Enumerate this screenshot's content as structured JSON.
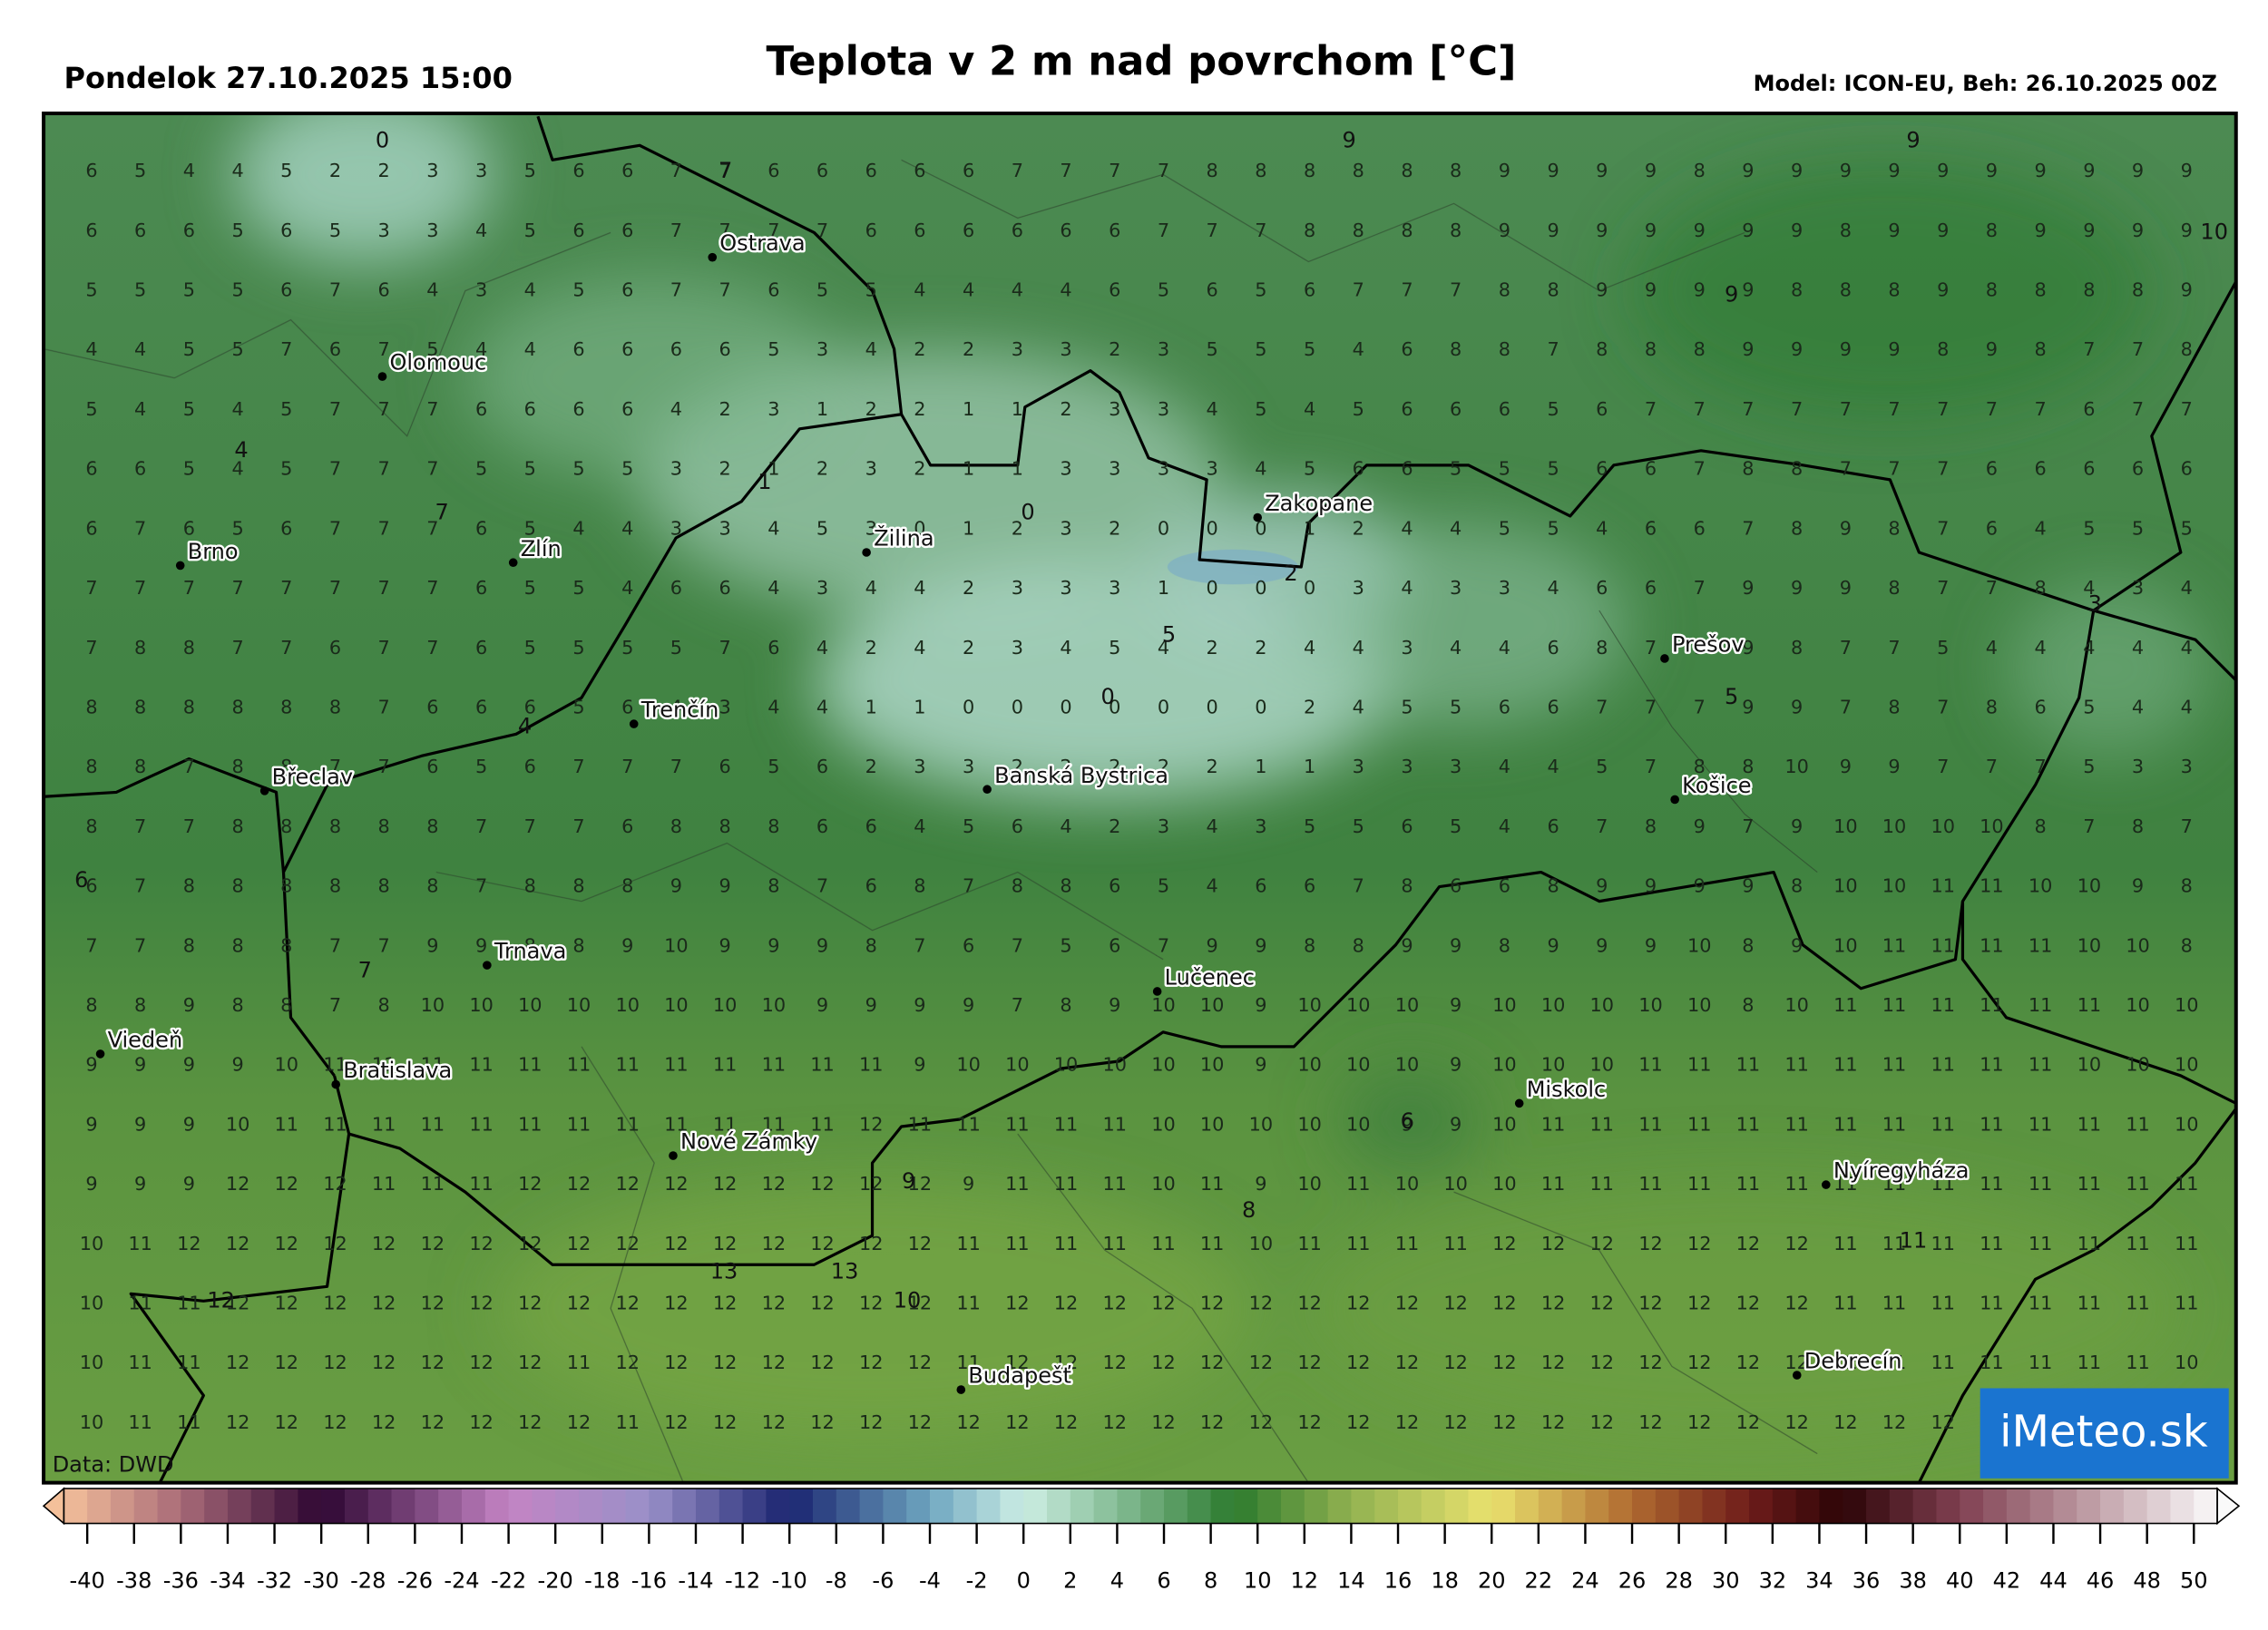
{
  "header": {
    "date": "Pondelok 27.10.2025 15:00",
    "title": "Teplota v 2 m nad povrchom [°C]",
    "model": "Model: ICON-EU, Beh: 26.10.2025 00Z"
  },
  "grid": {
    "rows": [
      [
        6,
        5,
        4,
        4,
        5,
        2,
        2,
        3,
        3,
        5,
        6,
        6,
        7,
        7,
        6,
        6,
        6,
        6,
        6,
        7,
        7,
        7,
        7,
        8,
        8,
        8,
        8,
        8,
        8,
        9,
        9,
        9,
        9,
        8,
        9,
        9,
        9,
        9,
        9,
        9,
        9,
        9,
        9,
        9
      ],
      [
        6,
        6,
        6,
        5,
        6,
        5,
        3,
        3,
        4,
        5,
        6,
        6,
        7,
        7,
        7,
        7,
        6,
        6,
        6,
        6,
        6,
        6,
        7,
        7,
        7,
        8,
        8,
        8,
        8,
        9,
        9,
        9,
        9,
        9,
        9,
        9,
        8,
        9,
        9,
        8,
        9,
        9,
        9,
        9
      ],
      [
        5,
        5,
        5,
        5,
        6,
        7,
        6,
        4,
        3,
        4,
        5,
        6,
        7,
        7,
        6,
        5,
        5,
        4,
        4,
        4,
        4,
        6,
        5,
        6,
        5,
        6,
        7,
        7,
        7,
        8,
        8,
        9,
        9,
        9,
        9,
        8,
        8,
        8,
        9,
        8,
        8,
        8,
        8,
        9
      ],
      [
        4,
        4,
        5,
        5,
        7,
        6,
        7,
        5,
        4,
        4,
        6,
        6,
        6,
        6,
        5,
        3,
        4,
        2,
        2,
        3,
        3,
        2,
        3,
        5,
        5,
        5,
        4,
        6,
        8,
        8,
        7,
        8,
        8,
        8,
        9,
        9,
        9,
        9,
        8,
        9,
        8,
        7,
        7,
        8
      ],
      [
        5,
        4,
        5,
        4,
        5,
        7,
        7,
        7,
        6,
        6,
        6,
        6,
        4,
        2,
        3,
        1,
        2,
        2,
        1,
        1,
        2,
        3,
        3,
        4,
        5,
        4,
        5,
        6,
        6,
        6,
        5,
        6,
        7,
        7,
        7,
        7,
        7,
        7,
        7,
        7,
        7,
        6,
        7,
        7
      ],
      [
        6,
        6,
        5,
        4,
        5,
        7,
        7,
        7,
        5,
        5,
        5,
        5,
        3,
        2,
        1,
        2,
        3,
        2,
        1,
        1,
        3,
        3,
        3,
        3,
        4,
        5,
        6,
        6,
        5,
        5,
        5,
        6,
        6,
        7,
        8,
        8,
        7,
        7,
        7,
        6,
        6,
        6,
        6,
        6
      ],
      [
        6,
        7,
        6,
        5,
        6,
        7,
        7,
        7,
        6,
        5,
        4,
        4,
        3,
        3,
        4,
        5,
        3,
        0,
        1,
        2,
        3,
        2,
        0,
        0,
        0,
        1,
        2,
        4,
        4,
        5,
        5,
        4,
        6,
        6,
        7,
        8,
        9,
        8,
        7,
        6,
        4,
        5,
        5,
        5
      ],
      [
        7,
        7,
        7,
        7,
        7,
        7,
        7,
        7,
        6,
        5,
        5,
        4,
        6,
        6,
        4,
        3,
        4,
        4,
        2,
        3,
        3,
        3,
        1,
        0,
        0,
        0,
        3,
        4,
        3,
        3,
        4,
        6,
        6,
        7,
        9,
        9,
        9,
        8,
        7,
        7,
        8,
        4,
        3,
        4
      ],
      [
        7,
        8,
        8,
        7,
        7,
        6,
        7,
        7,
        6,
        5,
        5,
        5,
        5,
        7,
        6,
        4,
        2,
        4,
        2,
        3,
        4,
        5,
        4,
        2,
        2,
        4,
        4,
        3,
        4,
        4,
        6,
        8,
        7,
        9,
        9,
        8,
        7,
        7,
        5,
        4,
        4,
        4,
        4,
        4
      ],
      [
        8,
        8,
        8,
        8,
        8,
        8,
        7,
        6,
        6,
        6,
        5,
        6,
        4,
        3,
        4,
        4,
        1,
        1,
        0,
        0,
        0,
        0,
        0,
        0,
        0,
        2,
        4,
        5,
        5,
        6,
        6,
        7,
        7,
        7,
        9,
        9,
        7,
        8,
        7,
        8,
        6,
        5,
        4,
        4
      ],
      [
        8,
        8,
        7,
        8,
        8,
        7,
        7,
        6,
        5,
        6,
        7,
        7,
        7,
        6,
        5,
        6,
        2,
        3,
        3,
        2,
        2,
        2,
        2,
        2,
        1,
        1,
        3,
        3,
        3,
        4,
        4,
        5,
        7,
        8,
        8,
        10,
        9,
        9,
        7,
        7,
        7,
        5,
        3,
        3
      ],
      [
        8,
        7,
        7,
        8,
        8,
        8,
        8,
        8,
        7,
        7,
        7,
        6,
        8,
        8,
        8,
        6,
        6,
        4,
        5,
        6,
        4,
        2,
        3,
        4,
        3,
        5,
        5,
        6,
        5,
        4,
        6,
        7,
        8,
        9,
        7,
        9,
        10,
        10,
        10,
        10,
        8,
        7,
        8,
        7
      ],
      [
        6,
        7,
        8,
        8,
        8,
        8,
        8,
        8,
        7,
        8,
        8,
        8,
        9,
        9,
        8,
        7,
        6,
        8,
        7,
        8,
        8,
        6,
        5,
        4,
        6,
        6,
        7,
        8,
        6,
        6,
        8,
        9,
        9,
        9,
        9,
        8,
        10,
        10,
        11,
        11,
        10,
        10,
        9,
        8
      ],
      [
        7,
        7,
        8,
        8,
        8,
        7,
        7,
        9,
        9,
        8,
        8,
        9,
        10,
        9,
        9,
        9,
        8,
        7,
        6,
        7,
        5,
        6,
        7,
        9,
        9,
        8,
        8,
        9,
        9,
        8,
        9,
        9,
        9,
        10,
        8,
        9,
        10,
        11,
        11,
        11,
        11,
        10,
        10,
        8
      ],
      [
        8,
        8,
        9,
        8,
        8,
        7,
        8,
        10,
        10,
        10,
        10,
        10,
        10,
        10,
        10,
        9,
        9,
        9,
        9,
        7,
        8,
        9,
        10,
        10,
        9,
        10,
        10,
        10,
        9,
        10,
        10,
        10,
        10,
        10,
        8,
        10,
        11,
        11,
        11,
        11,
        11,
        11,
        10,
        10
      ],
      [
        9,
        9,
        9,
        9,
        10,
        11,
        11,
        11,
        11,
        11,
        11,
        11,
        11,
        11,
        11,
        11,
        11,
        9,
        10,
        10,
        10,
        10,
        10,
        10,
        9,
        10,
        10,
        10,
        9,
        10,
        10,
        10,
        11,
        11,
        11,
        11,
        11,
        11,
        11,
        11,
        11,
        10,
        10,
        10
      ],
      [
        9,
        9,
        9,
        10,
        11,
        11,
        11,
        11,
        11,
        11,
        11,
        11,
        11,
        11,
        11,
        11,
        12,
        11,
        11,
        11,
        11,
        11,
        10,
        10,
        10,
        10,
        10,
        9,
        9,
        10,
        11,
        11,
        11,
        11,
        11,
        11,
        11,
        11,
        11,
        11,
        11,
        11,
        11,
        10
      ],
      [
        9,
        9,
        9,
        12,
        12,
        12,
        11,
        11,
        11,
        12,
        12,
        12,
        12,
        12,
        12,
        12,
        12,
        12,
        9,
        11,
        11,
        11,
        10,
        11,
        9,
        10,
        11,
        10,
        10,
        10,
        11,
        11,
        11,
        11,
        11,
        11,
        11,
        11,
        11,
        11,
        11,
        11,
        11,
        11
      ],
      [
        10,
        11,
        12,
        12,
        12,
        12,
        12,
        12,
        12,
        12,
        12,
        12,
        12,
        12,
        12,
        12,
        12,
        12,
        11,
        11,
        11,
        11,
        11,
        11,
        10,
        11,
        11,
        11,
        11,
        12,
        12,
        12,
        12,
        12,
        12,
        12,
        11,
        11,
        11,
        11,
        11,
        11,
        11,
        11
      ],
      [
        10,
        11,
        11,
        12,
        12,
        12,
        12,
        12,
        12,
        12,
        12,
        12,
        12,
        12,
        12,
        12,
        12,
        12,
        11,
        12,
        12,
        12,
        12,
        12,
        12,
        12,
        12,
        12,
        12,
        12,
        12,
        12,
        12,
        12,
        12,
        12,
        11,
        11,
        11,
        11,
        11,
        11,
        11,
        11
      ],
      [
        10,
        11,
        11,
        12,
        12,
        12,
        12,
        12,
        12,
        12,
        11,
        12,
        12,
        12,
        12,
        12,
        12,
        12,
        11,
        12,
        12,
        12,
        12,
        12,
        12,
        12,
        12,
        12,
        12,
        12,
        12,
        12,
        12,
        12,
        12,
        12,
        12,
        11,
        11,
        11,
        11,
        11,
        11,
        10
      ],
      [
        10,
        11,
        11,
        12,
        12,
        12,
        12,
        12,
        12,
        12,
        12,
        11,
        12,
        12,
        12,
        12,
        12,
        12,
        12,
        12,
        12,
        12,
        12,
        12,
        12,
        12,
        12,
        12,
        12,
        12,
        12,
        12,
        12,
        12,
        12,
        12,
        12,
        12,
        12,
        12,
        11,
        11,
        11,
        11
      ]
    ]
  },
  "extremes": [
    0,
    7,
    9,
    9,
    9,
    10,
    4,
    7,
    1,
    0,
    2,
    5,
    0,
    3,
    5,
    4,
    6,
    7,
    6,
    9,
    8,
    10,
    13,
    13,
    12,
    11
  ],
  "cities": [
    "Ostrava",
    "Olomouc",
    "Brno",
    "Zlín",
    "Žilina",
    "Zakopane",
    "Prešov",
    "Trenčín",
    "Břeclav",
    "Banská Bystrica",
    "Košice",
    "Trnava",
    "Lučenec",
    "Viedeň",
    "Bratislava",
    "Miskolc",
    "Nové Zámky",
    "Nyíregyháza",
    "Budapešť",
    "Debrecín"
  ],
  "footer": {
    "source": "Data: DWD",
    "logo": "iMeteo.sk"
  },
  "colorbar": {
    "ticks": [
      -40,
      -38,
      -36,
      -34,
      -32,
      -30,
      -28,
      -26,
      -24,
      -22,
      -20,
      -18,
      -16,
      -14,
      -12,
      -10,
      -8,
      -6,
      -4,
      -2,
      0,
      2,
      4,
      6,
      8,
      10,
      12,
      14,
      16,
      18,
      20,
      22,
      24,
      26,
      28,
      30,
      32,
      34,
      36,
      38,
      40,
      42,
      44,
      46,
      48,
      50
    ]
  }
}
